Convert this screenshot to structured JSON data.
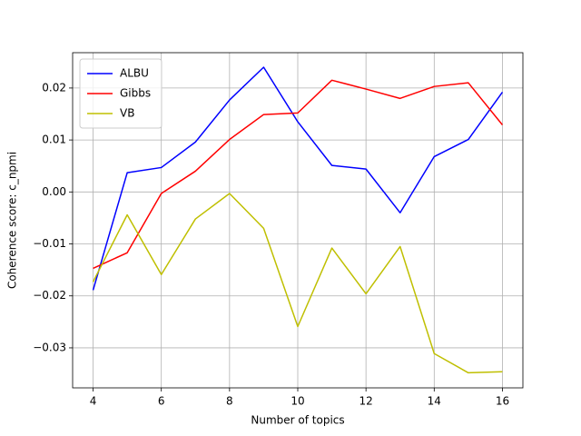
{
  "chart_data": {
    "type": "line",
    "x_label": "Number of topics",
    "y_label": "Coherence score: c_npmi",
    "x": [
      4,
      5,
      6,
      7,
      8,
      9,
      10,
      11,
      12,
      13,
      14,
      15,
      16
    ],
    "series": [
      {
        "name": "ALBU",
        "color": "#0000ff",
        "values": [
          -0.0189,
          0.0037,
          0.0047,
          0.0096,
          0.0177,
          0.024,
          0.0135,
          0.0051,
          0.0044,
          -0.004,
          0.0068,
          0.0101,
          0.0192
        ]
      },
      {
        "name": "Gibbs",
        "color": "#ff0000",
        "values": [
          -0.0147,
          -0.0117,
          -0.0003,
          0.004,
          0.0101,
          0.0149,
          0.0152,
          0.0215,
          0.0198,
          0.018,
          0.0203,
          0.021,
          0.0129
        ]
      },
      {
        "name": "VB",
        "color": "#bfbf00",
        "values": [
          -0.0173,
          -0.0044,
          -0.0159,
          -0.0052,
          -0.0003,
          -0.007,
          -0.0259,
          -0.0108,
          -0.0196,
          -0.0105,
          -0.0311,
          -0.0348,
          -0.0346
        ]
      }
    ],
    "xlim": [
      3.4,
      16.6
    ],
    "xticks": [
      4,
      6,
      8,
      10,
      12,
      14,
      16
    ],
    "ylim": [
      -0.0377,
      0.0268
    ],
    "yticks": [
      {
        "value": -0.03,
        "label": "−0.03"
      },
      {
        "value": -0.02,
        "label": "−0.02"
      },
      {
        "value": -0.01,
        "label": "−0.01"
      },
      {
        "value": 0,
        "label": "0.00"
      },
      0.01,
      0.02
    ],
    "grid": true,
    "legend": "upper-left"
  }
}
